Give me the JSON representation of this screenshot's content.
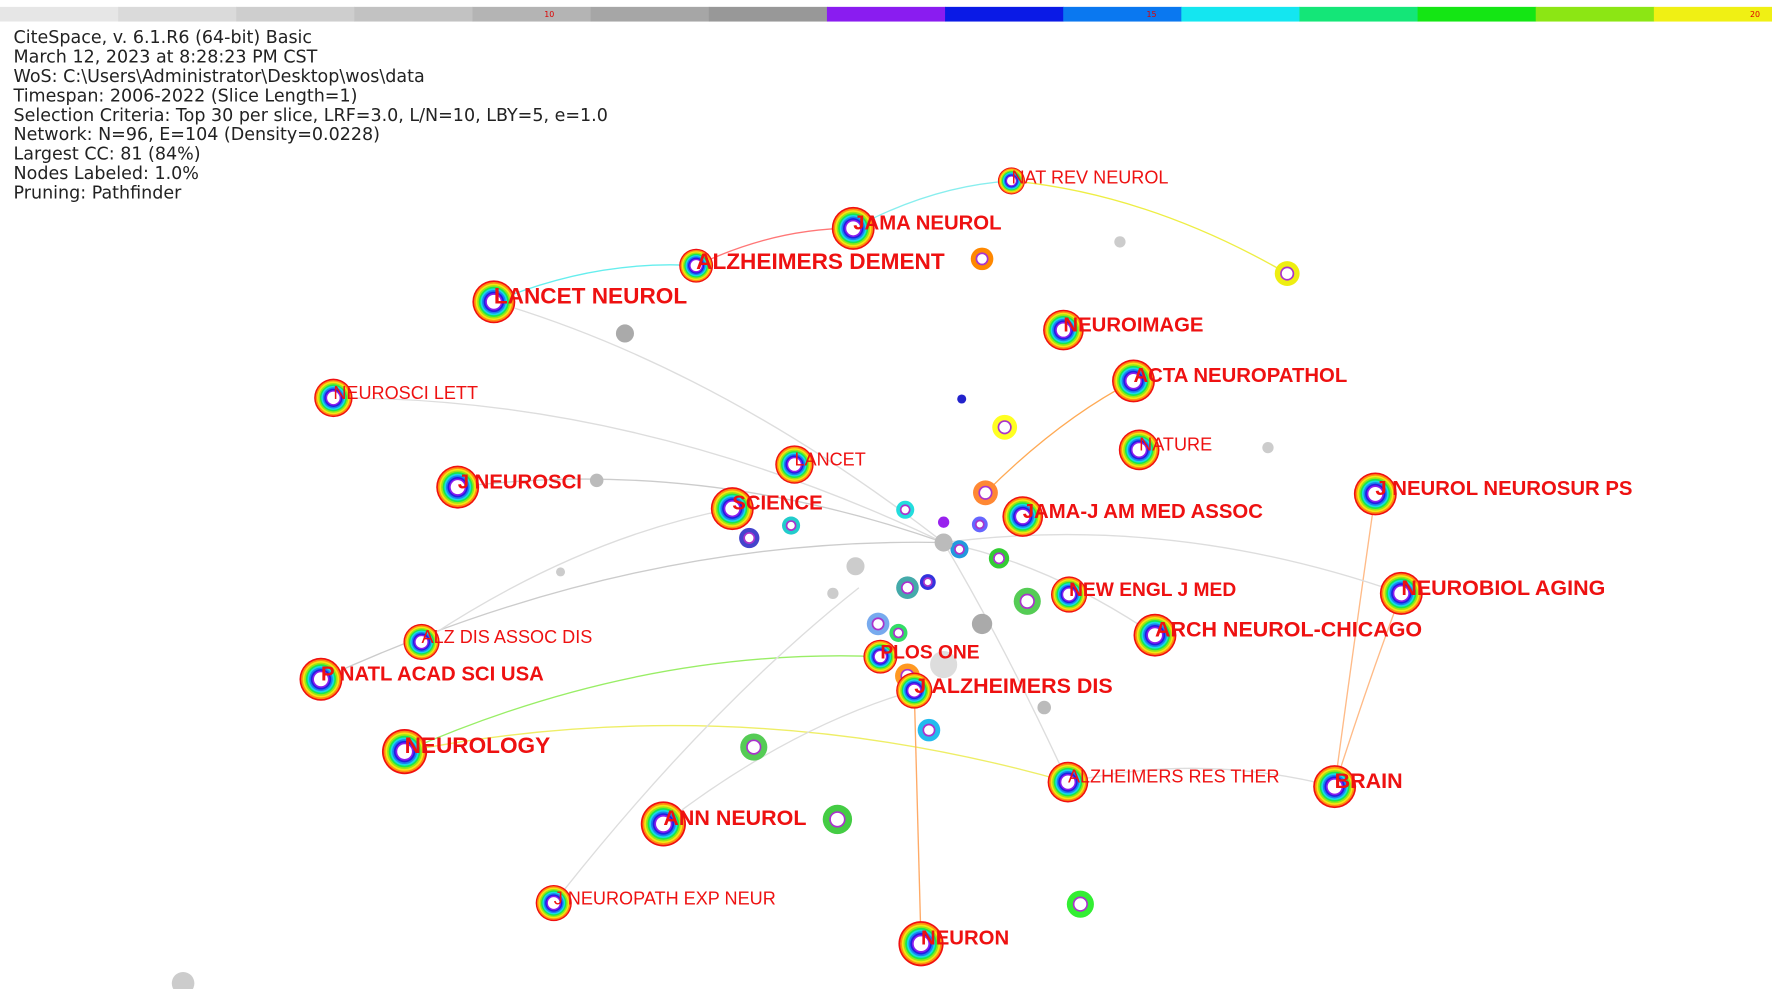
{
  "header": {
    "lines": [
      "CiteSpace, v. 6.1.R6 (64-bit) Basic",
      "March 12, 2023 at 8:28:23 PM CST",
      "WoS: C:\\Users\\Administrator\\Desktop\\wos\\data",
      "Timespan: 2006-2022 (Slice Length=1)",
      "Selection Criteria: Top 30 per slice, LRF=3.0, L/N=10, LBY=5, e=1.0",
      "Network: N=96, E=104 (Density=0.0228)",
      "Largest CC: 81 (84%)",
      "Nodes Labeled: 1.0%",
      "Pruning: Pathfinder"
    ]
  },
  "timeline": {
    "labels": [
      "10",
      "15",
      "20"
    ]
  },
  "nodes": [
    {
      "label": "NAT REV NEUROL"
    },
    {
      "label": "JAMA NEUROL"
    },
    {
      "label": "ALZHEIMERS DEMENT"
    },
    {
      "label": "LANCET NEUROL"
    },
    {
      "label": "NEUROIMAGE"
    },
    {
      "label": "ACTA NEUROPATHOL"
    },
    {
      "label": "NEUROSCI LETT"
    },
    {
      "label": "NATURE"
    },
    {
      "label": "LANCET"
    },
    {
      "label": "J NEUROSCI"
    },
    {
      "label": "SCIENCE"
    },
    {
      "label": "JAMA-J AM MED ASSOC"
    },
    {
      "label": "J NEUROL NEUROSUR PS"
    },
    {
      "label": "NEW ENGL J MED"
    },
    {
      "label": "NEUROBIOL AGING"
    },
    {
      "label": "ARCH NEUROL-CHICAGO"
    },
    {
      "label": "ALZ DIS ASSOC DIS"
    },
    {
      "label": "PLOS ONE"
    },
    {
      "label": "P NATL ACAD SCI USA"
    },
    {
      "label": "J ALZHEIMERS DIS"
    },
    {
      "label": "NEUROLOGY"
    },
    {
      "label": "ALZHEIMERS RES THER"
    },
    {
      "label": "BRAIN"
    },
    {
      "label": "ANN NEUROL"
    },
    {
      "label": "J NEUROPATH EXP NEUR"
    },
    {
      "label": "NEURON"
    }
  ]
}
